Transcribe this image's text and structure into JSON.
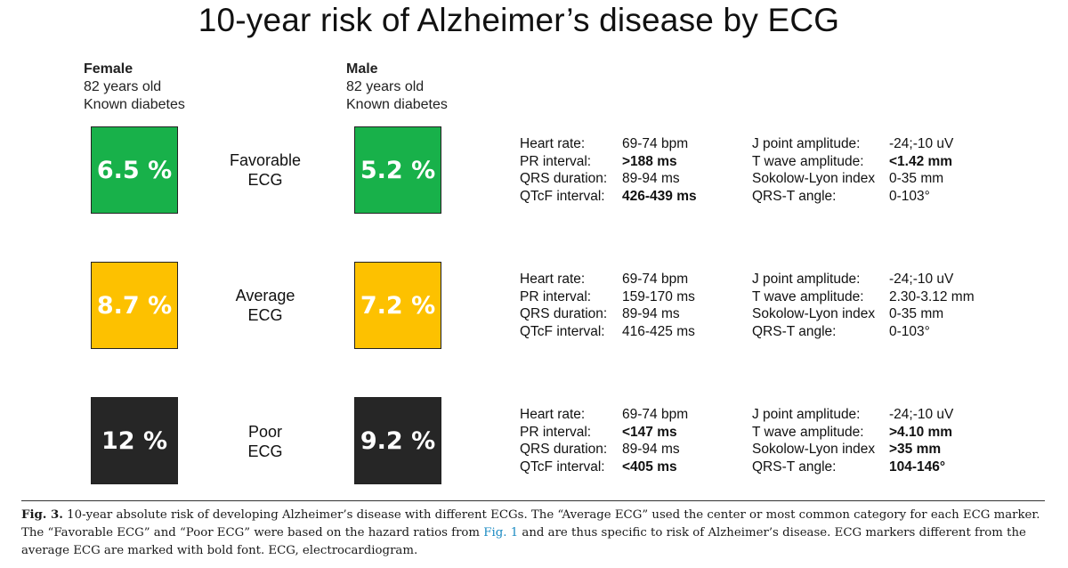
{
  "title": "10-year risk of Alzheimer’s disease by ECG",
  "columns": {
    "female": {
      "sex": "Female",
      "age": "82 years old",
      "condition": "Known diabetes"
    },
    "male": {
      "sex": "Male",
      "age": "82 years old",
      "condition": "Known diabetes"
    }
  },
  "rows": [
    {
      "label_line1": "Favorable",
      "label_line2": "ECG",
      "female_risk": "6.5 %",
      "male_risk": "5.2 %",
      "color": "#18b14a",
      "markers_left": [
        {
          "name": "Heart rate:",
          "value": "69-74 bpm",
          "bold": false
        },
        {
          "name": "PR interval:",
          "value": ">188 ms",
          "bold": true
        },
        {
          "name": "QRS duration:",
          "value": "89-94 ms",
          "bold": false
        },
        {
          "name": "QTcF interval:",
          "value": "426-439 ms",
          "bold": true
        }
      ],
      "markers_right": [
        {
          "name": "J point amplitude:",
          "value": "-24;-10 uV",
          "bold": false
        },
        {
          "name": "T wave amplitude:",
          "value": "<1.42 mm",
          "bold": true
        },
        {
          "name": "Sokolow-Lyon index",
          "value": "0-35 mm",
          "bold": false
        },
        {
          "name": "QRS-T angle:",
          "value": "0-103°",
          "bold": false
        }
      ]
    },
    {
      "label_line1": "Average",
      "label_line2": "ECG",
      "female_risk": "8.7 %",
      "male_risk": "7.2 %",
      "color": "#fdc100",
      "markers_left": [
        {
          "name": "Heart rate:",
          "value": "69-74 bpm",
          "bold": false
        },
        {
          "name": "PR interval:",
          "value": "159-170 ms",
          "bold": false
        },
        {
          "name": "QRS duration:",
          "value": "89-94 ms",
          "bold": false
        },
        {
          "name": "QTcF interval:",
          "value": "416-425 ms",
          "bold": false
        }
      ],
      "markers_right": [
        {
          "name": "J point amplitude:",
          "value": "-24;-10 uV",
          "bold": false
        },
        {
          "name": "T wave amplitude:",
          "value": "2.30-3.12 mm",
          "bold": false
        },
        {
          "name": "Sokolow-Lyon index",
          "value": "0-35 mm",
          "bold": false
        },
        {
          "name": "QRS-T angle:",
          "value": "0-103°",
          "bold": false
        }
      ]
    },
    {
      "label_line1": "Poor",
      "label_line2": "ECG",
      "female_risk": "12 %",
      "male_risk": "9.2 %",
      "color": "#262626",
      "markers_left": [
        {
          "name": "Heart rate:",
          "value": "69-74 bpm",
          "bold": false
        },
        {
          "name": "PR interval:",
          "value": "<147 ms",
          "bold": true
        },
        {
          "name": "QRS duration:",
          "value": "89-94 ms",
          "bold": false
        },
        {
          "name": "QTcF interval:",
          "value": "<405 ms",
          "bold": true
        }
      ],
      "markers_right": [
        {
          "name": "J point amplitude:",
          "value": "-24;-10 uV",
          "bold": false
        },
        {
          "name": "T wave amplitude:",
          "value": ">4.10 mm",
          "bold": true
        },
        {
          "name": "Sokolow-Lyon index",
          "value": ">35 mm",
          "bold": true
        },
        {
          "name": "QRS-T angle:",
          "value": "104-146°",
          "bold": true
        }
      ]
    }
  ],
  "caption": {
    "label": "Fig. 3.",
    "text_before_link": "10-year absolute risk of developing Alzheimer’s disease with different ECGs. The “Average ECG” used the center or most common category for each ECG marker. The “Favorable ECG” and “Poor ECG” were based on the hazard ratios from",
    "link": "Fig. 1",
    "text_after_link": "and are thus specific to risk of Alzheimer’s disease. ECG markers different from the average ECG are marked with bold font. ECG, electrocardiogram."
  }
}
